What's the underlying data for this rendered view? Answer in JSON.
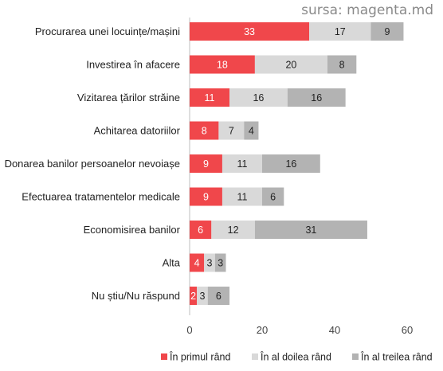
{
  "source": "sursa: magenta.md",
  "chart_data": {
    "type": "bar",
    "orientation": "horizontal",
    "stacked": true,
    "categories": [
      "Procurarea unei locuințe/mașini",
      "Investirea în afacere",
      "Vizitarea țărilor străine",
      "Achitarea datoriilor",
      "Donarea banilor persoanelor nevoiașe",
      "Efectuarea tratamentelor medicale",
      "Economisirea banilor",
      "Alta",
      "Nu știu/Nu răspund"
    ],
    "series": [
      {
        "name": "În primul rând",
        "color": "#f0474b",
        "label_color": "#ffffff",
        "values": [
          33,
          18,
          11,
          8,
          9,
          9,
          6,
          4,
          2
        ]
      },
      {
        "name": "În al doilea rând",
        "color": "#d9d9d9",
        "label_color": "#222222",
        "values": [
          17,
          20,
          16,
          7,
          11,
          11,
          12,
          3,
          3
        ]
      },
      {
        "name": "În al treilea rând",
        "color": "#b3b3b3",
        "label_color": "#222222",
        "values": [
          9,
          8,
          16,
          4,
          16,
          6,
          31,
          3,
          6
        ]
      }
    ],
    "xlim": [
      0,
      60
    ],
    "xticks": [
      0,
      20,
      40,
      60
    ],
    "grid": false,
    "legend_position": "bottom"
  }
}
